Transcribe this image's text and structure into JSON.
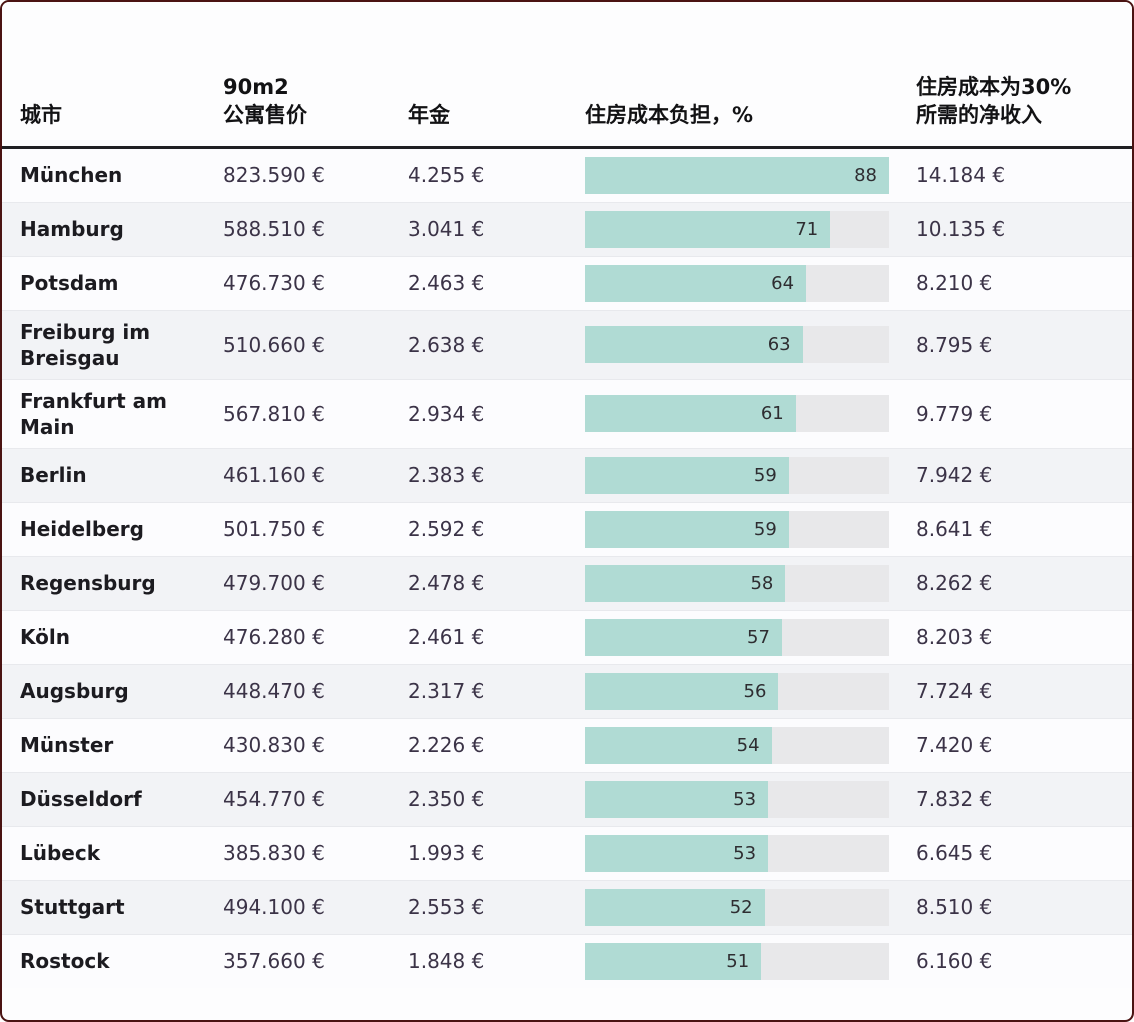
{
  "colors": {
    "bar_fill": "#b0dbd4",
    "bar_track": "#e8e8ea",
    "row_alt": "#f2f3f6",
    "header_rule": "#1f1f22",
    "frame_border": "#4a1312"
  },
  "table": {
    "columns": [
      {
        "key": "city",
        "label": "城市"
      },
      {
        "key": "price",
        "label_lines": [
          "90m2",
          "公寓售价"
        ]
      },
      {
        "key": "annuity",
        "label": "年金"
      },
      {
        "key": "burden",
        "label": "住房成本负担，%"
      },
      {
        "key": "income",
        "label_lines": [
          "住房成本为30%",
          "所需的净收入"
        ]
      }
    ]
  },
  "chart_data": {
    "type": "table",
    "title": "",
    "bar_column": "burden",
    "bar_scale_max": 88,
    "legend": "none",
    "rows": [
      {
        "city": "München",
        "price": "823.590 €",
        "annuity": "4.255 €",
        "burden": 88,
        "income": "14.184 €"
      },
      {
        "city": "Hamburg",
        "price": "588.510 €",
        "annuity": "3.041 €",
        "burden": 71,
        "income": "10.135 €"
      },
      {
        "city": "Potsdam",
        "price": "476.730 €",
        "annuity": "2.463 €",
        "burden": 64,
        "income": "8.210 €"
      },
      {
        "city": "Freiburg im Breisgau",
        "price": "510.660 €",
        "annuity": "2.638 €",
        "burden": 63,
        "income": "8.795 €"
      },
      {
        "city": "Frankfurt am Main",
        "price": "567.810 €",
        "annuity": "2.934 €",
        "burden": 61,
        "income": "9.779 €"
      },
      {
        "city": "Berlin",
        "price": "461.160 €",
        "annuity": "2.383 €",
        "burden": 59,
        "income": "7.942 €"
      },
      {
        "city": "Heidelberg",
        "price": "501.750 €",
        "annuity": "2.592 €",
        "burden": 59,
        "income": "8.641 €"
      },
      {
        "city": "Regensburg",
        "price": "479.700 €",
        "annuity": "2.478 €",
        "burden": 58,
        "income": "8.262 €"
      },
      {
        "city": "Köln",
        "price": "476.280 €",
        "annuity": "2.461 €",
        "burden": 57,
        "income": "8.203 €"
      },
      {
        "city": "Augsburg",
        "price": "448.470 €",
        "annuity": "2.317 €",
        "burden": 56,
        "income": "7.724 €"
      },
      {
        "city": "Münster",
        "price": "430.830 €",
        "annuity": "2.226 €",
        "burden": 54,
        "income": "7.420 €"
      },
      {
        "city": "Düsseldorf",
        "price": "454.770 €",
        "annuity": "2.350 €",
        "burden": 53,
        "income": "7.832 €"
      },
      {
        "city": "Lübeck",
        "price": "385.830 €",
        "annuity": "1.993 €",
        "burden": 53,
        "income": "6.645 €"
      },
      {
        "city": "Stuttgart",
        "price": "494.100 €",
        "annuity": "2.553 €",
        "burden": 52,
        "income": "8.510 €"
      },
      {
        "city": "Rostock",
        "price": "357.660 €",
        "annuity": "1.848 €",
        "burden": 51,
        "income": "6.160 €"
      }
    ]
  }
}
